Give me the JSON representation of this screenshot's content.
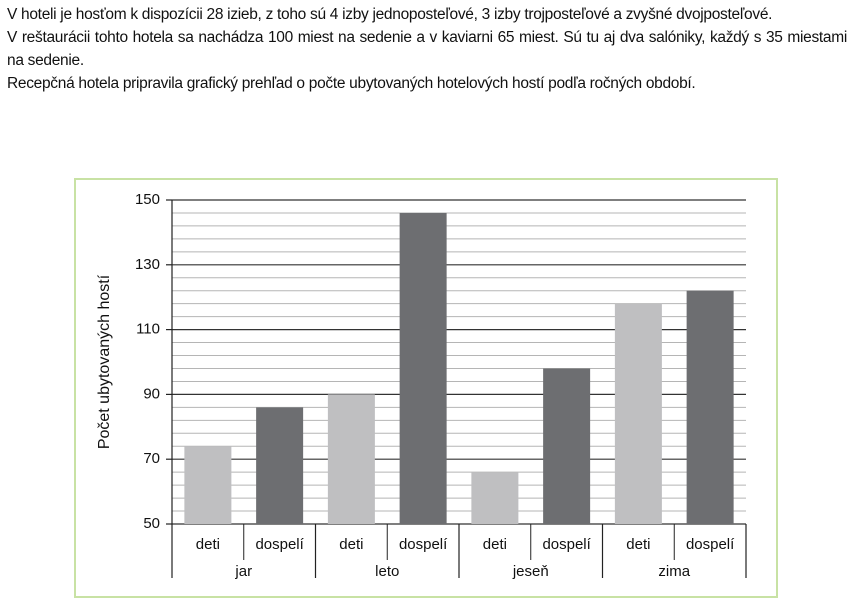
{
  "text": {
    "paragraphs": [
      "V hoteli je hosťom k dispozícii 28 izieb, z toho sú 4 izby jednoposteľové, 3 izby trojposteľové a zvyšné dvojposteľové.",
      "V reštaurácii tohto hotela sa nachádza 100 miest na sedenie a v kaviarni 65 miest. Sú tu aj dva salóniky, každý s 35 miestami na sedenie.",
      "Recepčná hotela pripravila grafický prehľad o počte ubytovaných hotelových hostí podľa ročných období."
    ]
  },
  "chart_data": {
    "type": "bar",
    "ylabel": "Počet ubytovaných hostí",
    "categories": [
      "jar",
      "leto",
      "jeseň",
      "zima"
    ],
    "series": [
      {
        "name": "deti",
        "color": "#bfbfc1",
        "values": [
          74,
          90,
          66,
          118
        ]
      },
      {
        "name": "dospelí",
        "color": "#6d6e71",
        "values": [
          86,
          146,
          98,
          122
        ]
      }
    ],
    "ylim": [
      50,
      150
    ],
    "yticks": [
      50,
      70,
      90,
      110,
      130,
      150
    ],
    "minor_yticks": [
      54,
      58,
      62,
      66,
      74,
      78,
      82,
      86,
      94,
      98,
      102,
      106,
      114,
      118,
      122,
      126,
      134,
      138,
      142,
      146
    ],
    "grid": true
  }
}
